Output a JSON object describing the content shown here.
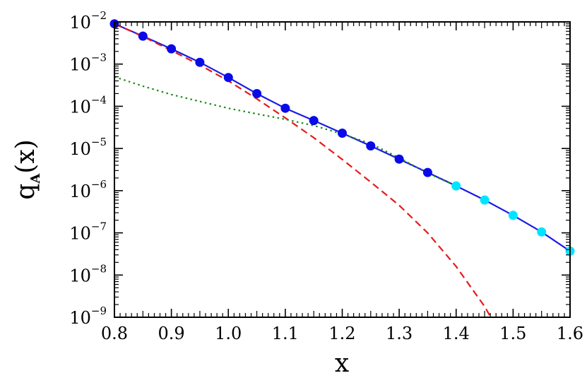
{
  "chart_data": {
    "type": "line",
    "title": "",
    "xlabel": "x",
    "ylabel": {
      "base": "q",
      "subscript": "A",
      "suffix": "(x)"
    },
    "xlim": [
      0.8,
      1.6
    ],
    "ylim_log10": [
      -9,
      -2
    ],
    "yscale": "log",
    "grid": false,
    "x_ticks": [
      "0.8",
      "0.9",
      "1.0",
      "1.1",
      "1.2",
      "1.3",
      "1.4",
      "1.5",
      "1.6"
    ],
    "y_ticks": [
      {
        "base": "10",
        "exp": "−2",
        "value": 0.01
      },
      {
        "base": "10",
        "exp": "−3",
        "value": 0.001
      },
      {
        "base": "10",
        "exp": "−4",
        "value": 0.0001
      },
      {
        "base": "10",
        "exp": "−5",
        "value": 1e-05
      },
      {
        "base": "10",
        "exp": "−6",
        "value": 1e-06
      },
      {
        "base": "10",
        "exp": "−7",
        "value": 1e-07
      },
      {
        "base": "10",
        "exp": "−8",
        "value": 1e-08
      },
      {
        "base": "10",
        "exp": "−9",
        "value": 1e-09
      }
    ],
    "series": [
      {
        "style": "solid",
        "color": "#1a1ae6",
        "x": [
          0.8,
          0.85,
          0.9,
          0.95,
          1.0,
          1.05,
          1.1,
          1.15,
          1.2,
          1.25,
          1.3,
          1.35,
          1.4,
          1.45,
          1.5,
          1.55,
          1.6
        ],
        "y": [
          0.009,
          0.0046,
          0.0023,
          0.0011,
          0.00048,
          0.0002,
          9e-05,
          4.6e-05,
          2.3e-05,
          1.15e-05,
          5.6e-06,
          2.7e-06,
          1.3e-06,
          6e-07,
          2.6e-07,
          1.05e-07,
          3.7e-08
        ]
      },
      {
        "style": "dashed",
        "color": "#e61a1a",
        "x": [
          0.8,
          0.85,
          0.9,
          0.95,
          1.0,
          1.05,
          1.1,
          1.15,
          1.2,
          1.25,
          1.3,
          1.35,
          1.4,
          1.45,
          1.47
        ],
        "y": [
          0.009,
          0.0045,
          0.0021,
          0.00095,
          0.0004,
          0.00015,
          5.3e-05,
          1.8e-05,
          5.5e-06,
          1.6e-06,
          4.5e-07,
          1e-07,
          1.6e-08,
          1.8e-09,
          6e-10
        ]
      },
      {
        "style": "dotted",
        "color": "#1a8c1a",
        "x": [
          0.8,
          0.85,
          0.9,
          0.95,
          1.0,
          1.05,
          1.1,
          1.15,
          1.2,
          1.25,
          1.3,
          1.35,
          1.4
        ],
        "y": [
          0.0005,
          0.0003,
          0.00019,
          0.00013,
          9e-05,
          6.6e-05,
          4.9e-05,
          3.5e-05,
          2.2e-05,
          1.3e-05,
          6e-06,
          2.6e-06,
          1.3e-06
        ]
      }
    ],
    "markers": [
      {
        "color": "#0a0ae8",
        "x": [
          0.8,
          0.85,
          0.9,
          0.95,
          1.0,
          1.05,
          1.1,
          1.15,
          1.2,
          1.25,
          1.3,
          1.35
        ],
        "y": [
          0.009,
          0.0046,
          0.0023,
          0.0011,
          0.00048,
          0.0002,
          9e-05,
          4.6e-05,
          2.3e-05,
          1.15e-05,
          5.6e-06,
          2.7e-06
        ]
      },
      {
        "color": "#00e5ff",
        "x": [
          1.4,
          1.45,
          1.5,
          1.55,
          1.6
        ],
        "y": [
          1.3e-06,
          6e-07,
          2.6e-07,
          1.05e-07,
          3.7e-08
        ]
      }
    ]
  }
}
